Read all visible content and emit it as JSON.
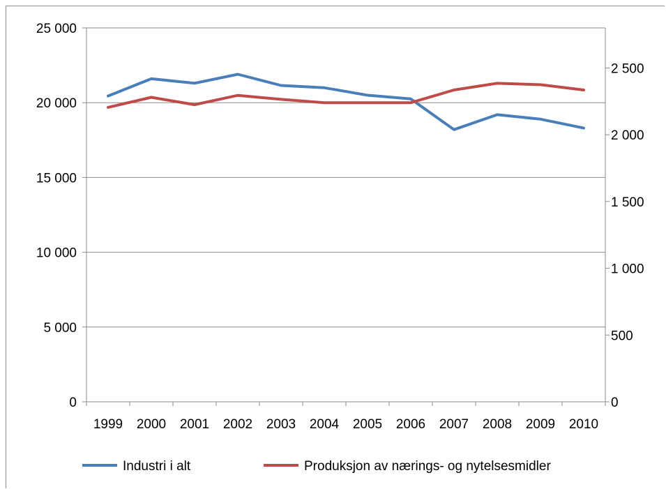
{
  "chart_data": {
    "type": "line",
    "categories": [
      "1999",
      "2000",
      "2001",
      "2002",
      "2003",
      "2004",
      "2005",
      "2006",
      "2007",
      "2008",
      "2009",
      "2010"
    ],
    "left_axis": {
      "ylim": [
        0,
        25000
      ],
      "ticks": [
        0,
        5000,
        10000,
        15000,
        20000,
        25000
      ],
      "tick_labels": [
        "0",
        "5 000",
        "10 000",
        "15 000",
        "20 000",
        "25 000"
      ]
    },
    "right_axis": {
      "ylim": [
        0,
        2800
      ],
      "ticks": [
        0,
        500,
        1000,
        1500,
        2000,
        2500
      ],
      "tick_labels": [
        "0",
        "500",
        "1 000",
        "1 500",
        "2 000",
        "2 500"
      ]
    },
    "gridlines": "horizontal, left axis",
    "legend_position": "bottom",
    "series": [
      {
        "name": "Industri i alt",
        "axis": "left",
        "color": "#4a7ebb",
        "values": [
          20450,
          21600,
          21300,
          21900,
          21150,
          21000,
          20500,
          20250,
          18200,
          19200,
          18900,
          18300
        ]
      },
      {
        "name": "Produksjon av nærings- og nytelsesmidler",
        "axis": "right",
        "color": "#be4b48",
        "values": [
          2205,
          2280,
          2225,
          2295,
          2265,
          2240,
          2240,
          2240,
          2335,
          2385,
          2375,
          2335
        ]
      }
    ]
  }
}
